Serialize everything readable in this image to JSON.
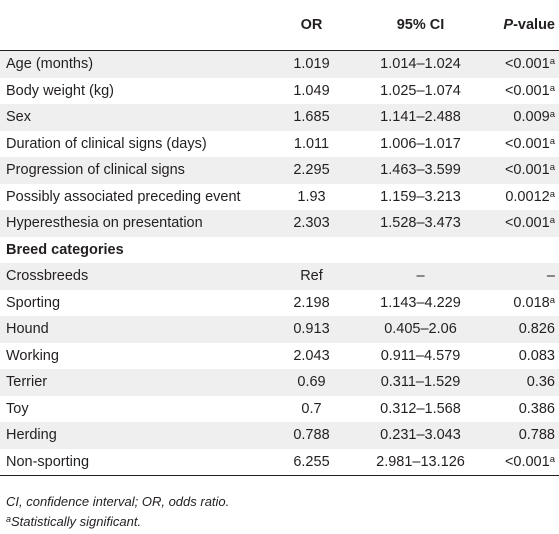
{
  "table": {
    "headers": {
      "variable": "",
      "or": "OR",
      "ci": "95% CI",
      "p_italic": "P",
      "p_rest": "-value"
    },
    "rows": [
      {
        "label": "Age (months)",
        "or": "1.019",
        "ci": "1.014–1.024",
        "p": "<0.001",
        "sup": "a"
      },
      {
        "label": "Body weight (kg)",
        "or": "1.049",
        "ci": "1.025–1.074",
        "p": "<0.001",
        "sup": "a"
      },
      {
        "label": "Sex",
        "or": "1.685",
        "ci": "1.141–2.488",
        "p": "0.009",
        "sup": "a"
      },
      {
        "label": "Duration of clinical signs (days)",
        "or": "1.011",
        "ci": "1.006–1.017",
        "p": "<0.001",
        "sup": "a"
      },
      {
        "label": "Progression of clinical signs",
        "or": "2.295",
        "ci": "1.463–3.599",
        "p": "<0.001",
        "sup": "a"
      },
      {
        "label": "Possibly associated preceding event",
        "or": "1.93",
        "ci": "1.159–3.213",
        "p": "0.0012",
        "sup": "a"
      },
      {
        "label": "Hyperesthesia on presentation",
        "or": "2.303",
        "ci": "1.528–3.473",
        "p": "<0.001",
        "sup": "a"
      },
      {
        "label": "Breed categories",
        "or": "",
        "ci": "",
        "p": "",
        "sup": ""
      },
      {
        "label": "Crossbreeds",
        "or": "Ref",
        "ci": "–",
        "p": "–",
        "sup": ""
      },
      {
        "label": "Sporting",
        "or": "2.198",
        "ci": "1.143–4.229",
        "p": "0.018",
        "sup": "a"
      },
      {
        "label": "Hound",
        "or": "0.913",
        "ci": "0.405–2.06",
        "p": "0.826",
        "sup": ""
      },
      {
        "label": "Working",
        "or": "2.043",
        "ci": "0.911–4.579",
        "p": "0.083",
        "sup": ""
      },
      {
        "label": "Terrier",
        "or": "0.69",
        "ci": "0.311–1.529",
        "p": "0.36",
        "sup": ""
      },
      {
        "label": "Toy",
        "or": "0.7",
        "ci": "0.312–1.568",
        "p": "0.386",
        "sup": ""
      },
      {
        "label": "Herding",
        "or": "0.788",
        "ci": "0.231–3.043",
        "p": "0.788",
        "sup": ""
      },
      {
        "label": "Non-sporting",
        "or": "6.255",
        "ci": "2.981–13.126",
        "p": "<0.001",
        "sup": "a"
      }
    ]
  },
  "footnotes": {
    "abbreviations": "CI, confidence interval; OR, odds ratio.",
    "sig_marker": "a",
    "sig_text": "Statistically significant."
  }
}
